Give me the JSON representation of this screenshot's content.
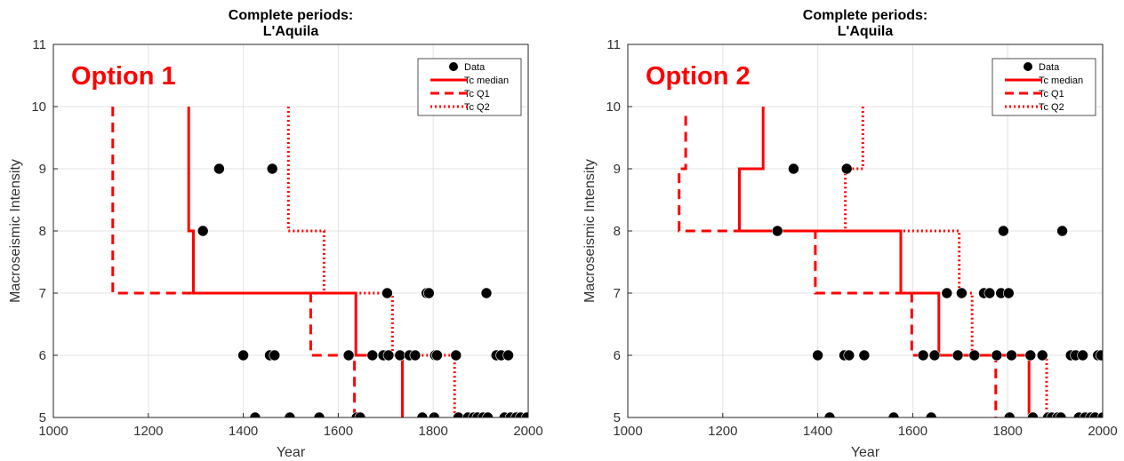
{
  "chart_data": [
    {
      "type": "scatter",
      "title_lines": [
        "Complete periods:",
        "L'Aquila"
      ],
      "annotation": "Option 1",
      "xlabel": "Year",
      "ylabel": "Macroseismic Intensity",
      "xlim": [
        1000,
        2000
      ],
      "ylim": [
        5,
        11
      ],
      "xticks": [
        1000,
        1200,
        1400,
        1600,
        1800,
        2000
      ],
      "yticks": [
        5,
        6,
        7,
        8,
        9,
        10,
        11
      ],
      "grid": true,
      "legend_position": "top-right",
      "colors": {
        "data": "#000000",
        "steps": "#ff0000"
      },
      "series": [
        {
          "name": "Data",
          "style": "marker",
          "points": [
            [
              1315,
              8
            ],
            [
              1349,
              9
            ],
            [
              1400,
              6
            ],
            [
              1425,
              5
            ],
            [
              1456,
              6
            ],
            [
              1461,
              9
            ],
            [
              1466,
              6
            ],
            [
              1498,
              5
            ],
            [
              1560,
              5
            ],
            [
              1622,
              6
            ],
            [
              1639,
              5
            ],
            [
              1646,
              5
            ],
            [
              1672,
              6
            ],
            [
              1695,
              6
            ],
            [
              1703,
              7
            ],
            [
              1706,
              6
            ],
            [
              1730,
              6
            ],
            [
              1750,
              6
            ],
            [
              1762,
              6
            ],
            [
              1777,
              5
            ],
            [
              1786,
              7
            ],
            [
              1791,
              7
            ],
            [
              1802,
              5
            ],
            [
              1804,
              6
            ],
            [
              1808,
              6
            ],
            [
              1848,
              6
            ],
            [
              1853,
              5
            ],
            [
              1873,
              5
            ],
            [
              1885,
              5
            ],
            [
              1893,
              5
            ],
            [
              1905,
              5
            ],
            [
              1912,
              7
            ],
            [
              1915,
              5
            ],
            [
              1933,
              6
            ],
            [
              1943,
              6
            ],
            [
              1950,
              5
            ],
            [
              1958,
              6
            ],
            [
              1963,
              5
            ],
            [
              1975,
              5
            ],
            [
              1984,
              5
            ],
            [
              1997,
              5
            ]
          ]
        },
        {
          "name": "Tc median",
          "style": "solid",
          "points": [
            [
              1285,
              10
            ],
            [
              1285,
              8
            ],
            [
              1295,
              8
            ],
            [
              1295,
              7
            ],
            [
              1637,
              7
            ],
            [
              1637,
              6
            ],
            [
              1735,
              6
            ],
            [
              1735,
              5
            ]
          ]
        },
        {
          "name": "Tc Q1",
          "style": "dashed",
          "points": [
            [
              1125,
              10
            ],
            [
              1125,
              7
            ],
            [
              1542,
              7
            ],
            [
              1542,
              6
            ],
            [
              1634,
              6
            ],
            [
              1634,
              5
            ]
          ]
        },
        {
          "name": "Tc Q2",
          "style": "dotted",
          "points": [
            [
              1495,
              10
            ],
            [
              1495,
              8
            ],
            [
              1570,
              8
            ],
            [
              1570,
              7
            ],
            [
              1714,
              7
            ],
            [
              1714,
              6
            ],
            [
              1845,
              6
            ],
            [
              1845,
              5
            ]
          ]
        }
      ]
    },
    {
      "type": "scatter",
      "title_lines": [
        "Complete periods:",
        "L'Aquila"
      ],
      "annotation": "Option 2",
      "xlabel": "Year",
      "ylabel": "Macroseismic Intensity",
      "xlim": [
        1000,
        2000
      ],
      "ylim": [
        5,
        11
      ],
      "xticks": [
        1000,
        1200,
        1400,
        1600,
        1800,
        2000
      ],
      "yticks": [
        5,
        6,
        7,
        8,
        9,
        10,
        11
      ],
      "grid": true,
      "legend_position": "top-right",
      "colors": {
        "data": "#000000",
        "steps": "#ff0000"
      },
      "series": [
        {
          "name": "Data",
          "style": "marker",
          "points": [
            [
              1315,
              8
            ],
            [
              1349,
              9
            ],
            [
              1400,
              6
            ],
            [
              1425,
              5
            ],
            [
              1456,
              6
            ],
            [
              1461,
              9
            ],
            [
              1466,
              6
            ],
            [
              1498,
              6
            ],
            [
              1560,
              5
            ],
            [
              1622,
              6
            ],
            [
              1639,
              5
            ],
            [
              1646,
              6
            ],
            [
              1672,
              7
            ],
            [
              1695,
              6
            ],
            [
              1703,
              7
            ],
            [
              1730,
              6
            ],
            [
              1750,
              7
            ],
            [
              1762,
              7
            ],
            [
              1777,
              6
            ],
            [
              1786,
              7
            ],
            [
              1791,
              8
            ],
            [
              1802,
              7
            ],
            [
              1804,
              5
            ],
            [
              1808,
              6
            ],
            [
              1848,
              6
            ],
            [
              1853,
              5
            ],
            [
              1873,
              6
            ],
            [
              1885,
              5
            ],
            [
              1893,
              5
            ],
            [
              1905,
              5
            ],
            [
              1912,
              5
            ],
            [
              1915,
              8
            ],
            [
              1933,
              6
            ],
            [
              1943,
              6
            ],
            [
              1950,
              5
            ],
            [
              1958,
              6
            ],
            [
              1963,
              5
            ],
            [
              1975,
              5
            ],
            [
              1984,
              5
            ],
            [
              1990,
              6
            ],
            [
              1997,
              6
            ],
            [
              2000,
              5
            ]
          ]
        },
        {
          "name": "Tc median",
          "style": "solid",
          "points": [
            [
              1285,
              10
            ],
            [
              1285,
              9
            ],
            [
              1235,
              9
            ],
            [
              1235,
              8
            ],
            [
              1575,
              8
            ],
            [
              1575,
              7
            ],
            [
              1655,
              7
            ],
            [
              1655,
              6
            ],
            [
              1845,
              6
            ],
            [
              1845,
              5
            ]
          ]
        },
        {
          "name": "Tc Q1",
          "style": "dashed",
          "points": [
            [
              1122,
              9.85
            ],
            [
              1122,
              9
            ],
            [
              1108,
              9
            ],
            [
              1108,
              8
            ],
            [
              1395,
              8
            ],
            [
              1395,
              7
            ],
            [
              1598,
              7
            ],
            [
              1598,
              6
            ],
            [
              1775,
              6
            ],
            [
              1775,
              5
            ]
          ]
        },
        {
          "name": "Tc Q2",
          "style": "dotted",
          "points": [
            [
              1495,
              10
            ],
            [
              1495,
              9
            ],
            [
              1458,
              9
            ],
            [
              1458,
              8
            ],
            [
              1698,
              8
            ],
            [
              1698,
              7
            ],
            [
              1725,
              7
            ],
            [
              1725,
              6
            ],
            [
              1882,
              6
            ],
            [
              1882,
              5
            ]
          ]
        }
      ]
    }
  ]
}
